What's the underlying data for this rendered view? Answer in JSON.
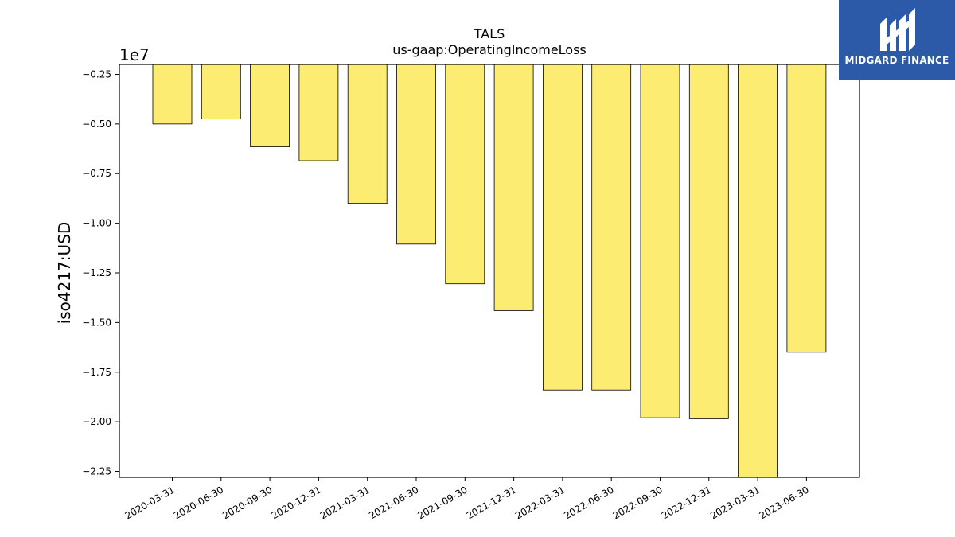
{
  "chart_data": {
    "type": "bar",
    "title": "TALS",
    "subtitle": "us-gaap:OperatingIncomeLoss",
    "ylabel": "iso4217:USD",
    "y_offset_label": "1e7",
    "categories": [
      "2020-03-31",
      "2020-06-30",
      "2020-09-30",
      "2020-12-31",
      "2021-03-31",
      "2021-06-30",
      "2021-09-30",
      "2021-12-31",
      "2022-03-31",
      "2022-06-30",
      "2022-09-30",
      "2022-12-31",
      "2023-03-31",
      "2023-06-30"
    ],
    "values": [
      -5000000,
      -4750000,
      -6150000,
      -6850000,
      -9000000,
      -11050000,
      -13050000,
      -14400000,
      -18400000,
      -18400000,
      -19800000,
      -19850000,
      -22800000,
      -16500000
    ],
    "ylim": [
      -2000000,
      -22800000
    ],
    "yticks": [
      -0.25,
      -0.5,
      -0.75,
      -1.0,
      -1.25,
      -1.5,
      -1.75,
      -2.0,
      -2.25
    ],
    "ytick_labels": [
      "−0.25",
      "−0.50",
      "−0.75",
      "−1.00",
      "−1.25",
      "−1.50",
      "−1.75",
      "−2.00",
      "−2.25"
    ],
    "bar_color": "#fdec72",
    "grid": false
  },
  "logo": {
    "text": "MIDGARD FINANCE",
    "color": "#2c5aa8"
  }
}
